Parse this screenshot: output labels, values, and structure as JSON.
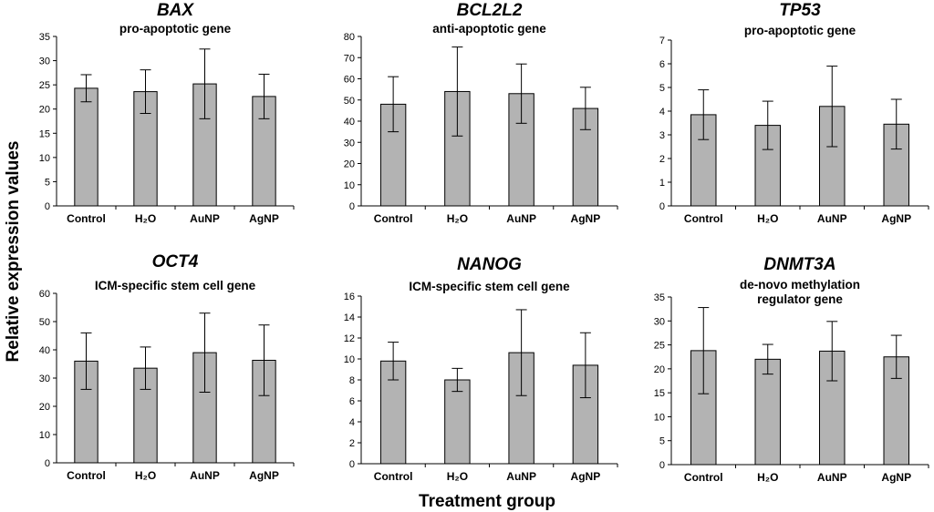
{
  "figure": {
    "ylabel": "Relative expression values",
    "xlabel": "Treatment group",
    "colors": {
      "bar": "#b3b3b3",
      "stroke": "#000000"
    }
  },
  "chart_data": [
    {
      "type": "bar",
      "title": "BAX",
      "subtitle": [
        "pro-apoptotic gene"
      ],
      "categories": [
        "Control",
        "H₂O",
        "AuNP",
        "AgNP"
      ],
      "values": [
        24.3,
        23.6,
        25.2,
        22.6
      ],
      "errors": [
        2.8,
        4.5,
        7.2,
        4.6
      ],
      "ylim": [
        0,
        35
      ],
      "yticks": [
        0,
        5,
        10,
        15,
        20,
        25,
        30,
        35
      ]
    },
    {
      "type": "bar",
      "title": "BCL2L2",
      "subtitle": [
        "anti-apoptotic gene"
      ],
      "categories": [
        "Control",
        "H₂O",
        "AuNP",
        "AgNP"
      ],
      "values": [
        48,
        54,
        53,
        46
      ],
      "errors": [
        13,
        21,
        14,
        10
      ],
      "ylim": [
        0,
        80
      ],
      "yticks": [
        0,
        10,
        20,
        30,
        40,
        50,
        60,
        70,
        80
      ]
    },
    {
      "type": "bar",
      "title": "TP53",
      "subtitle": [
        "pro-apoptotic gene"
      ],
      "categories": [
        "Control",
        "H₂O",
        "AuNP",
        "AgNP"
      ],
      "values": [
        3.85,
        3.4,
        4.2,
        3.45
      ],
      "errors": [
        1.05,
        1.02,
        1.7,
        1.05
      ],
      "ylim": [
        0,
        7
      ],
      "yticks": [
        0,
        1,
        2,
        3,
        4,
        5,
        6,
        7
      ]
    },
    {
      "type": "bar",
      "title": "OCT4",
      "subtitle": [
        "ICM-specific stem cell gene"
      ],
      "categories": [
        "Control",
        "H₂O",
        "AuNP",
        "AgNP"
      ],
      "values": [
        36,
        33.5,
        39,
        36.3
      ],
      "errors": [
        10,
        7.5,
        14,
        12.5
      ],
      "ylim": [
        0,
        60
      ],
      "yticks": [
        0,
        10,
        20,
        30,
        40,
        50,
        60
      ]
    },
    {
      "type": "bar",
      "title": "NANOG",
      "subtitle": [
        "ICM-specific stem cell gene"
      ],
      "categories": [
        "Control",
        "H₂O",
        "AuNP",
        "AgNP"
      ],
      "values": [
        9.8,
        8.0,
        10.6,
        9.4
      ],
      "errors": [
        1.8,
        1.1,
        4.1,
        3.1
      ],
      "ylim": [
        0,
        16
      ],
      "yticks": [
        0,
        2,
        4,
        6,
        8,
        10,
        12,
        14,
        16
      ]
    },
    {
      "type": "bar",
      "title": "DNMT3A",
      "subtitle": [
        "de-novo methylation",
        "regulator gene"
      ],
      "categories": [
        "Control",
        "H₂O",
        "AuNP",
        "AgNP"
      ],
      "values": [
        23.8,
        22.0,
        23.7,
        22.5
      ],
      "errors": [
        9.0,
        3.1,
        6.2,
        4.5
      ],
      "ylim": [
        0,
        35
      ],
      "yticks": [
        0,
        5,
        10,
        15,
        20,
        25,
        30,
        35
      ]
    }
  ]
}
